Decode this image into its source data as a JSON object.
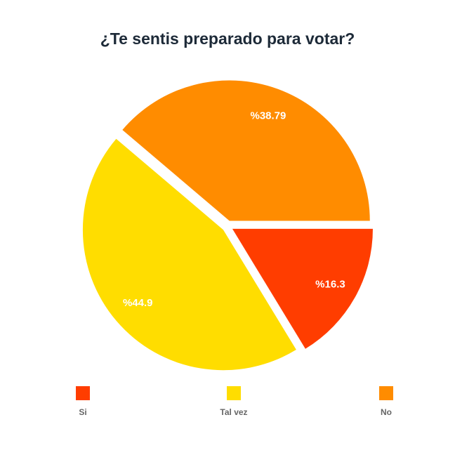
{
  "chart_data": {
    "type": "pie",
    "title": "¿Te sentis preparado para votar?",
    "categories": [
      "Si",
      "Tal vez",
      "No"
    ],
    "values": [
      16.3,
      44.9,
      38.79
    ],
    "labels": [
      "%16.3",
      "%44.9",
      "%38.79"
    ],
    "colors": [
      "#ff3d00",
      "#ffdd00",
      "#ff8c00"
    ],
    "legend_position": "bottom"
  }
}
